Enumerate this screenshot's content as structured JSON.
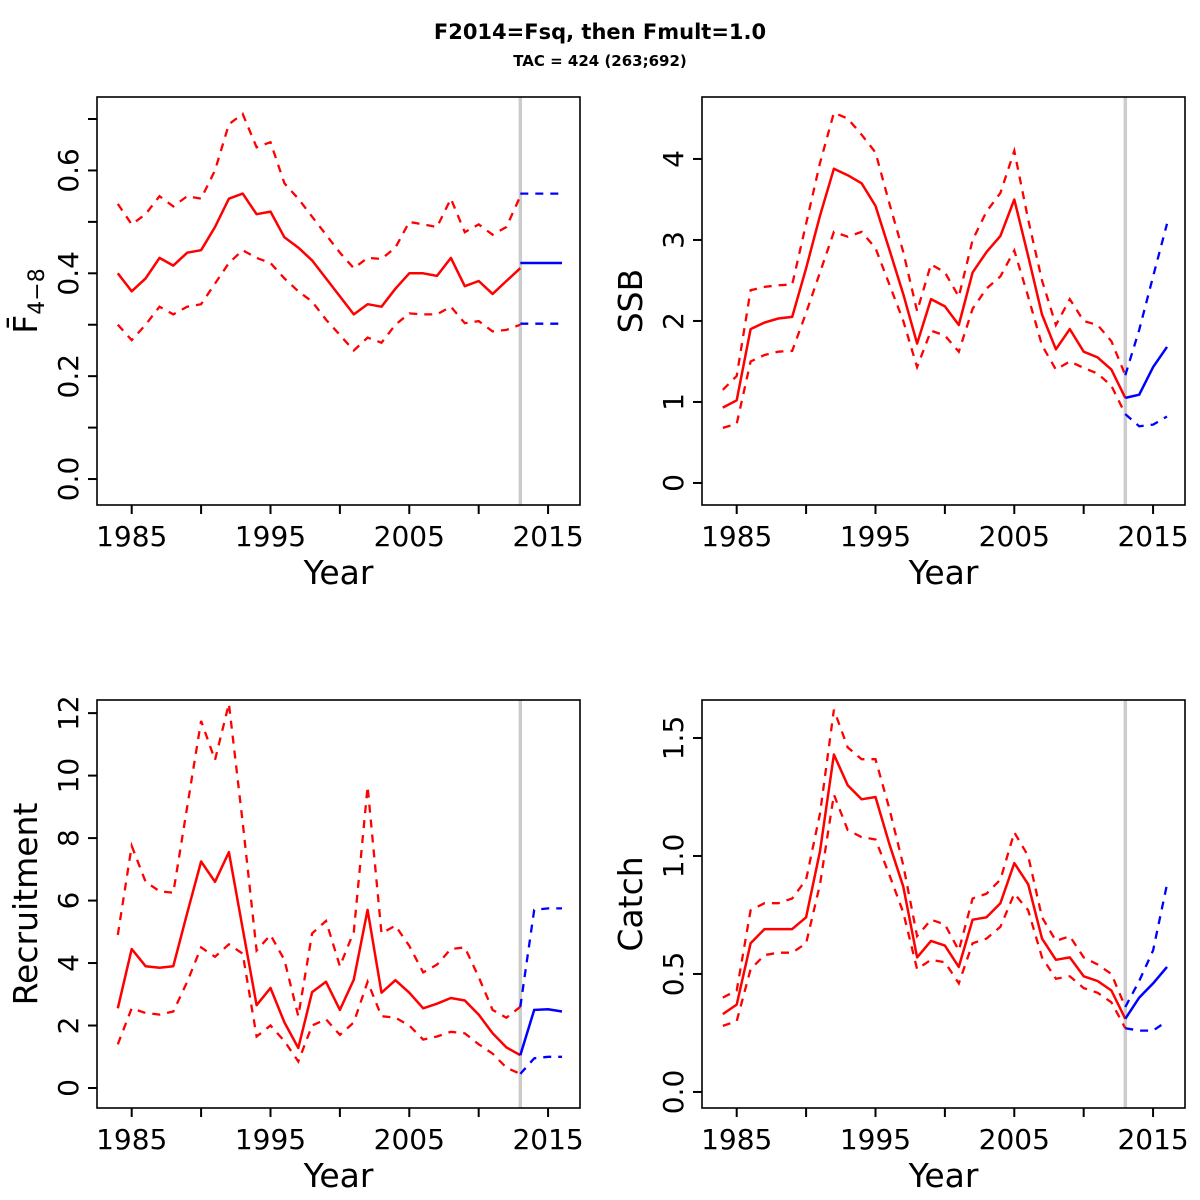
{
  "header": {
    "title": "F2014=Fsq, then Fmult=1.0",
    "subtitle": "TAC = 424 (263;692)"
  },
  "chart_data": {
    "type": "line",
    "layout": "2x2-grid",
    "legend": "none",
    "grid": false,
    "divider_year": 2013,
    "colors": {
      "historical": "#ff0000",
      "projection": "#0000ff",
      "divider": "#cccccc",
      "axis": "#000000"
    },
    "line_styles": {
      "median": "solid",
      "interval": "dashed"
    },
    "years_hist": [
      1984,
      1985,
      1986,
      1987,
      1988,
      1989,
      1990,
      1991,
      1992,
      1993,
      1994,
      1995,
      1996,
      1997,
      1998,
      1999,
      2000,
      2001,
      2002,
      2003,
      2004,
      2005,
      2006,
      2007,
      2008,
      2009,
      2010,
      2011,
      2012,
      2013
    ],
    "years_proj": [
      2013,
      2014,
      2015,
      2016
    ],
    "x_axis": {
      "label": "Year",
      "range": [
        1982.5,
        2017.3
      ],
      "ticks": [
        1985,
        1990,
        1995,
        2000,
        2005,
        2010,
        2015
      ],
      "tick_labels": [
        "1985",
        "",
        "1995",
        "",
        "2005",
        "",
        "2015"
      ]
    },
    "panels": [
      {
        "key": "fbar",
        "ylabel": "Fbar 4-8",
        "ylabel_main": "F̄",
        "ylabel_sub": "4−8",
        "ylim": [
          -0.0505,
          0.7428
        ],
        "yticks": [
          0,
          0.1,
          0.2,
          0.3,
          0.4,
          0.5,
          0.6,
          0.7
        ],
        "ytick_labels": [
          "0.0",
          "",
          "0.2",
          "",
          "0.4",
          "",
          "0.6",
          ""
        ],
        "median": [
          0.4,
          0.365,
          0.39,
          0.43,
          0.415,
          0.44,
          0.445,
          0.49,
          0.545,
          0.555,
          0.515,
          0.52,
          0.47,
          0.45,
          0.425,
          0.39,
          0.355,
          0.32,
          0.34,
          0.335,
          0.37,
          0.4,
          0.4,
          0.395,
          0.43,
          0.375,
          0.385,
          0.36,
          0.385,
          0.41
        ],
        "upper": [
          0.535,
          0.495,
          0.515,
          0.55,
          0.53,
          0.55,
          0.545,
          0.6,
          0.69,
          0.71,
          0.645,
          0.655,
          0.575,
          0.545,
          0.51,
          0.475,
          0.44,
          0.41,
          0.43,
          0.428,
          0.45,
          0.5,
          0.495,
          0.49,
          0.545,
          0.48,
          0.495,
          0.475,
          0.49,
          0.55
        ],
        "lower": [
          0.3,
          0.27,
          0.3,
          0.335,
          0.32,
          0.335,
          0.34,
          0.38,
          0.42,
          0.445,
          0.43,
          0.42,
          0.39,
          0.365,
          0.345,
          0.31,
          0.28,
          0.25,
          0.275,
          0.265,
          0.3,
          0.322,
          0.32,
          0.32,
          0.335,
          0.303,
          0.307,
          0.287,
          0.29,
          0.3
        ],
        "proj_median": [
          0.42,
          0.42,
          0.42,
          0.42
        ],
        "proj_upper": [
          0.555,
          0.555,
          0.555,
          0.555
        ],
        "proj_lower": [
          0.302,
          0.302,
          0.302,
          0.302
        ]
      },
      {
        "key": "ssb",
        "ylabel": "SSB",
        "ylim": [
          -0.272,
          4.765
        ],
        "yticks": [
          0,
          1,
          2,
          3,
          4
        ],
        "ytick_labels": [
          "0",
          "1",
          "2",
          "3",
          "4"
        ],
        "median": [
          0.93,
          1.02,
          1.9,
          1.98,
          2.03,
          2.05,
          2.65,
          3.3,
          3.88,
          3.8,
          3.7,
          3.42,
          2.88,
          2.33,
          1.72,
          2.27,
          2.18,
          1.95,
          2.6,
          2.85,
          3.05,
          3.5,
          2.8,
          2.08,
          1.65,
          1.9,
          1.62,
          1.55,
          1.4,
          1.05
        ],
        "upper": [
          1.15,
          1.32,
          2.38,
          2.42,
          2.44,
          2.45,
          3.2,
          3.95,
          4.57,
          4.5,
          4.3,
          4.08,
          3.45,
          2.85,
          2.12,
          2.7,
          2.6,
          2.3,
          3.0,
          3.35,
          3.58,
          4.1,
          3.25,
          2.5,
          1.95,
          2.27,
          2.0,
          1.95,
          1.75,
          1.33
        ],
        "lower": [
          0.68,
          0.73,
          1.5,
          1.58,
          1.62,
          1.63,
          2.1,
          2.6,
          3.1,
          3.04,
          3.1,
          2.9,
          2.45,
          2.0,
          1.43,
          1.88,
          1.82,
          1.62,
          2.15,
          2.4,
          2.55,
          2.87,
          2.3,
          1.7,
          1.4,
          1.5,
          1.42,
          1.35,
          1.2,
          0.85
        ],
        "proj_median": [
          1.05,
          1.09,
          1.43,
          1.68
        ],
        "proj_upper": [
          1.33,
          1.89,
          2.55,
          3.2
        ],
        "proj_lower": [
          0.85,
          0.7,
          0.72,
          0.82
        ]
      },
      {
        "key": "rec",
        "ylabel": "Recruitment",
        "ylim": [
          -0.64,
          12.42
        ],
        "yticks": [
          0,
          2,
          4,
          6,
          8,
          10,
          12
        ],
        "ytick_labels": [
          "0",
          "2",
          "4",
          "6",
          "8",
          "10",
          "12"
        ],
        "median": [
          2.55,
          4.45,
          3.9,
          3.85,
          3.9,
          5.6,
          7.25,
          6.6,
          7.55,
          5.1,
          2.65,
          3.2,
          2.1,
          1.28,
          3.07,
          3.4,
          2.5,
          3.47,
          5.7,
          3.05,
          3.45,
          3.05,
          2.55,
          2.7,
          2.88,
          2.8,
          2.35,
          1.75,
          1.3,
          1.05
        ],
        "upper": [
          4.9,
          7.75,
          6.6,
          6.3,
          6.25,
          9.0,
          11.75,
          10.5,
          12.3,
          8.5,
          4.4,
          4.9,
          4.1,
          2.3,
          4.95,
          5.35,
          3.9,
          5.0,
          9.65,
          4.95,
          5.2,
          4.55,
          3.7,
          3.95,
          4.45,
          4.5,
          3.55,
          2.5,
          2.25,
          2.6
        ],
        "lower": [
          1.4,
          2.55,
          2.4,
          2.35,
          2.45,
          3.4,
          4.5,
          4.2,
          4.6,
          4.3,
          1.65,
          2.0,
          1.5,
          0.85,
          2.0,
          2.2,
          1.7,
          2.1,
          3.4,
          2.3,
          2.25,
          2.0,
          1.55,
          1.65,
          1.8,
          1.75,
          1.4,
          1.1,
          0.65,
          0.45
        ],
        "proj_median": [
          1.05,
          2.5,
          2.52,
          2.45
        ],
        "proj_upper": [
          2.6,
          5.7,
          5.75,
          5.75
        ],
        "proj_lower": [
          0.45,
          0.95,
          1.0,
          1.0
        ]
      },
      {
        "key": "catch",
        "ylabel": "Catch",
        "ylim": [
          -0.068,
          1.661
        ],
        "yticks": [
          0,
          0.5,
          1,
          1.5
        ],
        "ytick_labels": [
          "0.0",
          "0.5",
          "1.0",
          "1.5"
        ],
        "median": [
          0.33,
          0.37,
          0.63,
          0.69,
          0.69,
          0.69,
          0.74,
          1.02,
          1.43,
          1.3,
          1.24,
          1.25,
          1.05,
          0.87,
          0.57,
          0.64,
          0.62,
          0.53,
          0.73,
          0.74,
          0.8,
          0.97,
          0.88,
          0.65,
          0.56,
          0.57,
          0.49,
          0.47,
          0.43,
          0.31
        ],
        "upper": [
          0.4,
          0.43,
          0.77,
          0.8,
          0.8,
          0.82,
          0.9,
          1.18,
          1.62,
          1.46,
          1.41,
          1.41,
          1.2,
          0.96,
          0.66,
          0.73,
          0.71,
          0.6,
          0.82,
          0.84,
          0.9,
          1.1,
          1.0,
          0.74,
          0.64,
          0.66,
          0.57,
          0.54,
          0.5,
          0.36
        ],
        "lower": [
          0.28,
          0.3,
          0.52,
          0.58,
          0.59,
          0.59,
          0.63,
          0.88,
          1.26,
          1.11,
          1.08,
          1.07,
          0.92,
          0.76,
          0.52,
          0.56,
          0.55,
          0.46,
          0.63,
          0.65,
          0.7,
          0.84,
          0.77,
          0.57,
          0.48,
          0.49,
          0.44,
          0.42,
          0.38,
          0.27
        ],
        "proj_median": [
          0.31,
          0.4,
          0.46,
          0.53
        ],
        "proj_upper": [
          0.36,
          0.47,
          0.6,
          0.88
        ],
        "proj_lower": [
          0.27,
          0.26,
          0.26,
          0.3
        ]
      }
    ]
  }
}
